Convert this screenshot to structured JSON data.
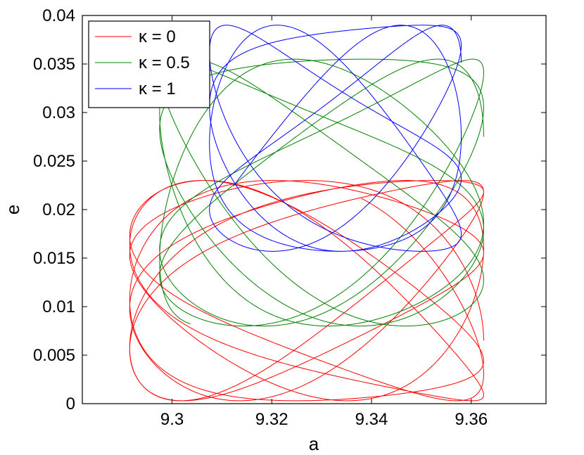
{
  "chart_data": {
    "type": "line",
    "xlabel": "a",
    "ylabel": "e",
    "xlim": [
      9.282,
      9.375
    ],
    "ylim": [
      0,
      0.04
    ],
    "x_ticks": [
      "9.3",
      "9.32",
      "9.34",
      "9.36"
    ],
    "y_ticks": [
      "0",
      "0.005",
      "0.01",
      "0.015",
      "0.02",
      "0.025",
      "0.03",
      "0.035",
      "0.04"
    ],
    "x_tick_values": [
      9.3,
      9.32,
      9.34,
      9.36
    ],
    "y_tick_values": [
      0,
      0.005,
      0.01,
      0.015,
      0.02,
      0.025,
      0.03,
      0.035,
      0.04
    ],
    "grid": false,
    "legend_position": "top-left",
    "series": [
      {
        "name": "κ = 0",
        "color": "#ff0000",
        "envelope": {
          "a_min": 9.2915,
          "a_max": 9.3625,
          "e_min": 0.0003,
          "e_max": 0.023
        },
        "center": [
          9.327,
          0.0118
        ],
        "amp": [
          0.0355,
          0.0112
        ],
        "tilt": -0.55,
        "phase_ratio": 8.1,
        "cycles": 7.2,
        "drift_exp": 1.1
      },
      {
        "name": "κ = 0.5",
        "color": "#008000",
        "envelope": {
          "a_min": 9.2975,
          "a_max": 9.3625,
          "e_min": 0.008,
          "e_max": 0.0355
        },
        "center": [
          9.331,
          0.0218
        ],
        "amp": [
          0.0325,
          0.0135
        ],
        "tilt": 0.5,
        "phase_ratio": 6.2,
        "cycles": 5.6,
        "drift_exp": 1.0
      },
      {
        "name": "κ = 1",
        "color": "#0000ff",
        "envelope": {
          "a_min": 9.3075,
          "a_max": 9.358,
          "e_min": 0.0157,
          "e_max": 0.039
        },
        "center": [
          9.3335,
          0.0275
        ],
        "amp": [
          0.025,
          0.0117
        ],
        "tilt": 0.95,
        "phase_ratio": 5.3,
        "cycles": 4.4,
        "drift_exp": 1.0
      }
    ]
  }
}
